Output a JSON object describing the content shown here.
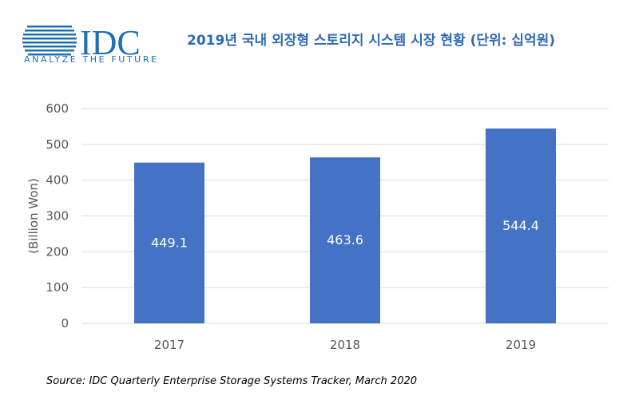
{
  "logo": {
    "name": "IDC",
    "tagline": "ANALYZE THE FUTURE"
  },
  "title": "2019년 국내 외장형 스토리지 시스템 시장 현황 (단위: 십억원)",
  "source": "Source: IDC Quarterly Enterprise Storage Systems Tracker, March 2020",
  "colors": {
    "bar": "#4472c4",
    "brand": "#1f6fb8",
    "title": "#2e6ab5",
    "grid": "#d9d9d9"
  },
  "chart_data": {
    "type": "bar",
    "categories": [
      "2017",
      "2018",
      "2019"
    ],
    "values": [
      449.1,
      463.6,
      544.4
    ],
    "data_labels": [
      "449.1",
      "463.6",
      "544.4"
    ],
    "ylabel": "(Billion Won)",
    "ylim": [
      0,
      600
    ],
    "yticks": [
      "0",
      "100",
      "200",
      "300",
      "400",
      "500",
      "600"
    ],
    "grid": true,
    "legend": "none"
  }
}
